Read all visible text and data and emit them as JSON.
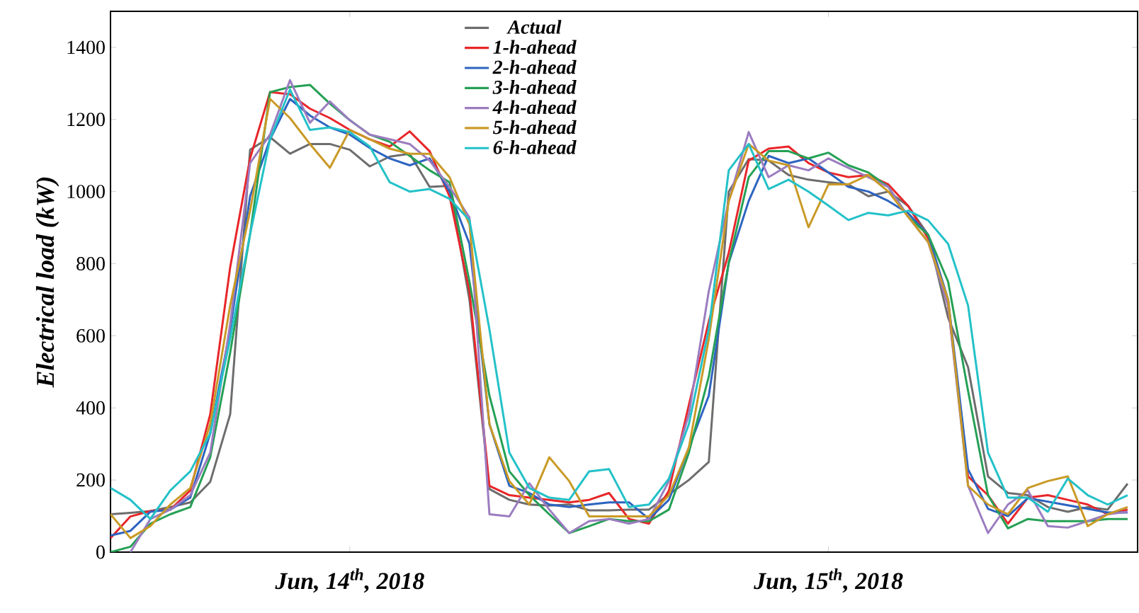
{
  "chart_data": {
    "type": "line",
    "ylabel": "Electrical load (kW)",
    "categories": [
      null,
      null,
      null,
      null,
      null,
      null,
      null,
      null,
      null,
      null,
      null,
      null,
      "Jun, 14$^{th}$, 2018",
      null,
      null,
      null,
      null,
      null,
      null,
      null,
      null,
      null,
      null,
      null,
      null,
      null,
      null,
      null,
      null,
      null,
      null,
      null,
      null,
      null,
      null,
      null,
      "Jun, 15$^{th}$, 2018",
      null,
      null,
      null,
      null,
      null,
      null,
      null,
      null,
      null,
      null,
      null,
      null,
      null,
      null,
      null
    ],
    "ylim": [
      0,
      1500
    ],
    "yticks": [
      0,
      200,
      400,
      600,
      800,
      1000,
      1200,
      1400
    ],
    "legend": "top",
    "series": [
      {
        "name": "Actual",
        "color": "#6d6d6d",
        "values": [
          105,
          109,
          114,
          125,
          138,
          195,
          382,
          1116,
          1151,
          1105,
          1132,
          1132,
          1116,
          1070,
          1097,
          1105,
          1013,
          1016,
          700,
          175,
          145,
          132,
          129,
          132,
          116,
          116,
          118,
          118,
          160,
          200,
          250,
          1000,
          1090,
          1086,
          1046,
          1033,
          1026,
          1020,
          987,
          1000,
          960,
          880,
          650,
          513,
          210,
          164,
          158,
          125,
          112,
          125,
          118,
          190
        ]
      },
      {
        "name": "1-h-ahead",
        "color": "#e8262a",
        "values": [
          39,
          99,
          114,
          118,
          171,
          382,
          790,
          1092,
          1276,
          1270,
          1230,
          1204,
          1171,
          1145,
          1125,
          1167,
          1112,
          987,
          724,
          184,
          158,
          151,
          145,
          138,
          145,
          164,
          92,
          79,
          171,
          408,
          640,
          830,
          1086,
          1119,
          1125,
          1079,
          1053,
          1040,
          1046,
          1020,
          960,
          870,
          684,
          210,
          158,
          79,
          151,
          158,
          145,
          132,
          105,
          118
        ]
      },
      {
        "name": "2-h-ahead",
        "color": "#2d64c0",
        "values": [
          46,
          59,
          112,
          118,
          151,
          329,
          618,
          987,
          1145,
          1257,
          1211,
          1178,
          1158,
          1121,
          1092,
          1073,
          1092,
          1000,
          855,
          355,
          184,
          164,
          132,
          125,
          132,
          138,
          138,
          92,
          145,
          290,
          434,
          803,
          974,
          1099,
          1079,
          1092,
          1053,
          1013,
          1000,
          974,
          940,
          880,
          700,
          230,
          120,
          100,
          150,
          140,
          130,
          120,
          110,
          110
        ]
      },
      {
        "name": "3-h-ahead",
        "color": "#25a055",
        "values": [
          0,
          15,
          79,
          105,
          125,
          263,
          553,
          882,
          1276,
          1290,
          1296,
          1244,
          1198,
          1158,
          1138,
          1099,
          1059,
          1026,
          750,
          434,
          224,
          158,
          105,
          53,
          72,
          92,
          86,
          86,
          118,
          276,
          487,
          803,
          1040,
          1112,
          1112,
          1092,
          1108,
          1073,
          1053,
          1013,
          930,
          880,
          750,
          447,
          158,
          66,
          92,
          86,
          86,
          86,
          92,
          92
        ]
      },
      {
        "name": "4-h-ahead",
        "color": "#9b7cc0",
        "values": [
          null,
          0,
          92,
          118,
          158,
          276,
          632,
          1079,
          1158,
          1309,
          1191,
          1250,
          1198,
          1158,
          1145,
          1132,
          1086,
          1013,
          928,
          105,
          99,
          191,
          118,
          53,
          86,
          92,
          79,
          92,
          197,
          382,
          724,
          974,
          1165,
          1040,
          1073,
          1059,
          1092,
          1066,
          1040,
          1013,
          930,
          860,
          684,
          184,
          53,
          132,
          171,
          72,
          68,
          86,
          105,
          112
        ]
      },
      {
        "name": "5-h-ahead",
        "color": "#c99a26",
        "values": [
          105,
          39,
          72,
          132,
          178,
          355,
          684,
          947,
          1257,
          1204,
          1132,
          1066,
          1171,
          1145,
          1119,
          1105,
          1105,
          1040,
          908,
          355,
          197,
          132,
          263,
          197,
          99,
          99,
          99,
          99,
          158,
          290,
          592,
          974,
          1132,
          1086,
          1073,
          901,
          1020,
          1020,
          1046,
          1000,
          930,
          860,
          700,
          184,
          132,
          105,
          178,
          197,
          210,
          72,
          105,
          125
        ]
      },
      {
        "name": "6-h-ahead",
        "color": "#23c1c8",
        "values": [
          178,
          145,
          92,
          171,
          224,
          329,
          592,
          882,
          1145,
          1283,
          1171,
          1178,
          1165,
          1125,
          1026,
          1000,
          1007,
          980,
          921,
          618,
          276,
          178,
          151,
          145,
          224,
          230,
          125,
          132,
          204,
          355,
          618,
          1059,
          1132,
          1007,
          1033,
          1000,
          961,
          921,
          941,
          934,
          947,
          920,
          855,
          684,
          276,
          151,
          151,
          112,
          204,
          158,
          132,
          158
        ]
      }
    ]
  }
}
